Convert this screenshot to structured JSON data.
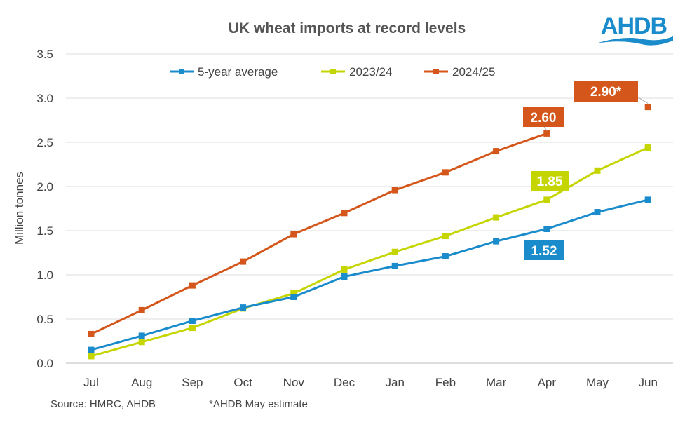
{
  "logo_text": "AHDB",
  "chart_data": {
    "type": "line",
    "title": "UK wheat imports at record levels",
    "ylabel": "Million tonnes",
    "xlabel": "",
    "ylim": [
      0,
      3.5
    ],
    "yticks": [
      "0.0",
      "0.5",
      "1.0",
      "1.5",
      "2.0",
      "2.5",
      "3.0",
      "3.5"
    ],
    "grid": true,
    "legend": "top",
    "categories": [
      "Jul",
      "Aug",
      "Sep",
      "Oct",
      "Nov",
      "Dec",
      "Jan",
      "Feb",
      "Mar",
      "Apr",
      "May",
      "Jun"
    ],
    "series": [
      {
        "name": "5-year average",
        "color": "#1A8BCB",
        "values": [
          0.15,
          0.31,
          0.48,
          0.63,
          0.75,
          0.98,
          1.1,
          1.21,
          1.38,
          1.52,
          1.71,
          1.85
        ]
      },
      {
        "name": "2023/24",
        "color": "#C5D500",
        "values": [
          0.08,
          0.24,
          0.4,
          0.62,
          0.79,
          1.06,
          1.26,
          1.44,
          1.65,
          1.85,
          2.18,
          2.44
        ]
      },
      {
        "name": "2024/25",
        "color": "#D4561A",
        "values": [
          0.33,
          0.6,
          0.88,
          1.15,
          1.46,
          1.7,
          1.96,
          2.16,
          2.4,
          2.6,
          null,
          2.9
        ]
      }
    ],
    "annotations": [
      {
        "series": 2,
        "index": 9,
        "text": "2.60"
      },
      {
        "series": 2,
        "index": 11,
        "text": "2.90*"
      },
      {
        "series": 1,
        "index": 9,
        "text": "1.85"
      },
      {
        "series": 0,
        "index": 9,
        "text": "1.52"
      }
    ],
    "source": "Source: HMRC, AHDB",
    "footnote": "*AHDB May estimate"
  }
}
